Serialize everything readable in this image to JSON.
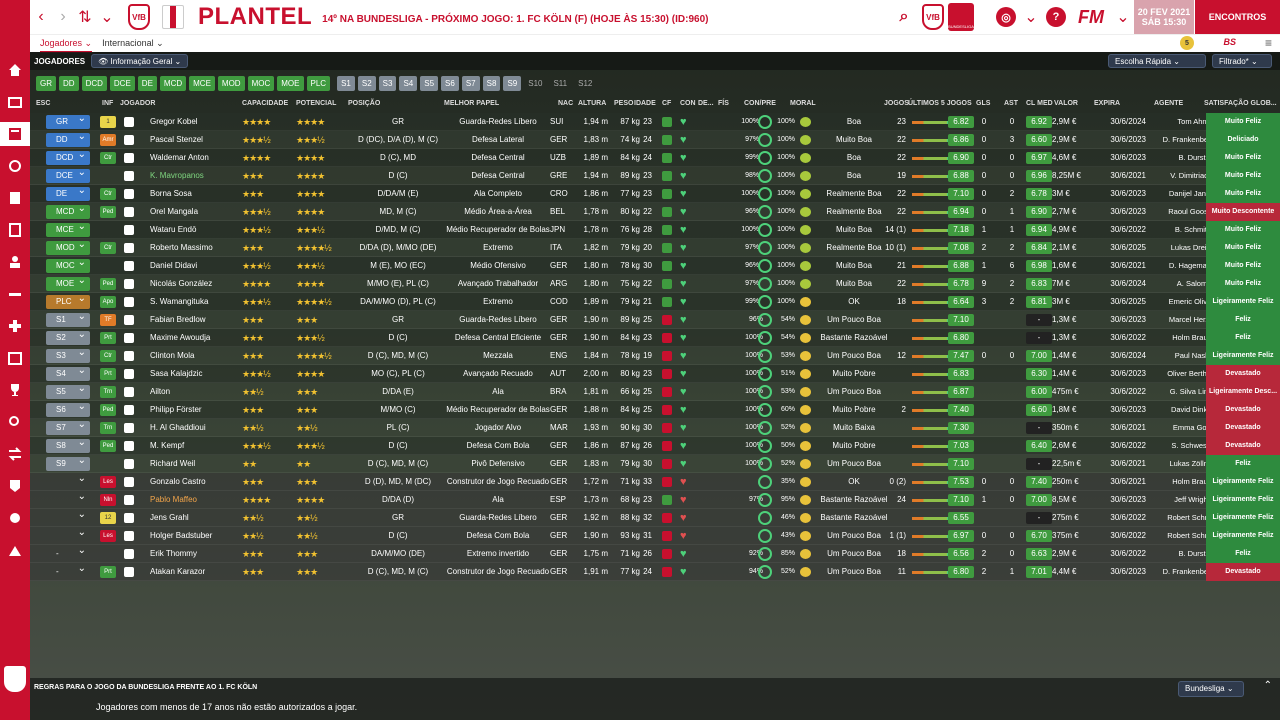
{
  "header": {
    "title": "PLANTEL",
    "subtitle": "14º NA BUNDESLIGA - PRÓXIMO JOGO: 1. FC KÖLN (F) (HOJE ÀS 15:30) (ID:960)",
    "date_line1": "20 FEV 2021",
    "date_line2": "SÁB 15:30",
    "encontros": "ENCONTROS",
    "fm_logo": "FM",
    "notif_count": "5",
    "league_label": "BUNDESLIGA",
    "bs_label": "BS"
  },
  "subtabs": [
    "Jogadores ⌄",
    "Internacional ⌄"
  ],
  "toolbar": {
    "label": "JOGADORES",
    "view": "Informação Geral",
    "quick": "Escolha Rápida",
    "filter": "Filtrado*"
  },
  "chips": {
    "main": [
      "GR",
      "DD",
      "DCD",
      "DCE",
      "DE",
      "MCD",
      "MCE",
      "MOD",
      "MOC",
      "MOE",
      "PLC"
    ],
    "subs": [
      "S1",
      "S2",
      "S3",
      "S4",
      "S5",
      "S6",
      "S7",
      "S8",
      "S9"
    ],
    "reserves": [
      "S10",
      "S11",
      "S12"
    ]
  },
  "columns": [
    "ESC",
    "INF",
    "JOGADOR",
    "CAPACIDADE",
    "POTENCIAL",
    "POSIÇÃO",
    "MELHOR PAPEL",
    "NAC",
    "ALTURA",
    "PESO",
    "IDADE",
    "CF",
    "CON",
    "DE...",
    "FÍS",
    "CON/PRE",
    "MORAL",
    "JOGOS",
    "ÚLTIMOS 5 JOGOS",
    "GLS",
    "AST",
    "CL MED",
    "VALOR",
    "EXPIRA",
    "AGENTE",
    "SATISFAÇÃO GLOB..."
  ],
  "players": [
    {
      "esc": "GR",
      "inf": "1",
      "name": "Gregor Kobel",
      "cap": "★★★★",
      "pot": "★★★★",
      "pos": "GR",
      "role": "Guarda-Redes Líbero",
      "nac": "SUI",
      "alt": "1,94 m",
      "peso": "87 kg",
      "idade": "23",
      "conpre": "100%",
      "conpre2": "100%",
      "moral": "Boa",
      "jogos": "23",
      "avg": "6.82",
      "gls": "0",
      "ast": "0",
      "clmed": "6.92",
      "valor": "2,9M €",
      "expira": "30/6/2024",
      "agente": "Tom Ahn",
      "sat": "Muito Feliz"
    },
    {
      "esc": "DD",
      "inf": "Amr",
      "name": "Pascal Stenzel",
      "cap": "★★★½",
      "pot": "★★★½",
      "pos": "D (DC), D/A (D), M (C)",
      "role": "Defesa Lateral",
      "nac": "GER",
      "alt": "1,83 m",
      "peso": "74 kg",
      "idade": "24",
      "conpre": "97%",
      "conpre2": "100%",
      "moral": "Muito Boa",
      "jogos": "22",
      "avg": "6.86",
      "gls": "0",
      "ast": "3",
      "clmed": "6.60",
      "valor": "2,9M €",
      "expira": "30/6/2023",
      "agente": "D. Frankenberger",
      "sat": "Deliciado"
    },
    {
      "esc": "DCD",
      "inf": "Ctr",
      "name": "Waldemar Anton",
      "cap": "★★★★",
      "pot": "★★★★",
      "pos": "D (C), MD",
      "role": "Defesa Central",
      "nac": "UZB",
      "alt": "1,89 m",
      "peso": "84 kg",
      "idade": "24",
      "conpre": "99%",
      "conpre2": "100%",
      "moral": "Boa",
      "jogos": "22",
      "avg": "6.90",
      "gls": "0",
      "ast": "0",
      "clmed": "6.97",
      "valor": "4,6M €",
      "expira": "30/6/2023",
      "agente": "B. Durst",
      "sat": "Muito Feliz"
    },
    {
      "esc": "DCE",
      "inf": "",
      "name": "K. Mavropanos",
      "cap": "★★★",
      "pot": "★★★★",
      "pos": "D (C)",
      "role": "Defesa Central",
      "nac": "GRE",
      "alt": "1,94 m",
      "peso": "89 kg",
      "idade": "23",
      "conpre": "98%",
      "conpre2": "100%",
      "moral": "Boa",
      "jogos": "19",
      "avg": "6.88",
      "gls": "0",
      "ast": "0",
      "clmed": "6.96",
      "valor": "8,25M €",
      "expira": "30/6/2021",
      "agente": "V. Dimitriadis",
      "sat": "Muito Feliz"
    },
    {
      "esc": "DE",
      "inf": "Ctr",
      "name": "Borna Sosa",
      "cap": "★★★",
      "pot": "★★★★",
      "pos": "D/DA/M (E)",
      "role": "Ala Completo",
      "nac": "CRO",
      "alt": "1,86 m",
      "peso": "77 kg",
      "idade": "23",
      "conpre": "100%",
      "conpre2": "100%",
      "moral": "Realmente Boa",
      "jogos": "22",
      "avg": "7.10",
      "gls": "0",
      "ast": "2",
      "clmed": "6.78",
      "valor": "3M €",
      "expira": "30/6/2023",
      "agente": "Danijel Jancic",
      "sat": "Muito Feliz"
    },
    {
      "esc": "MCD",
      "inf": "Ped",
      "name": "Orel Mangala",
      "cap": "★★★½",
      "pot": "★★★★",
      "pos": "MD, M (C)",
      "role": "Médio Área-a-Área",
      "nac": "BEL",
      "alt": "1,78 m",
      "peso": "80 kg",
      "idade": "22",
      "conpre": "96%",
      "conpre2": "100%",
      "moral": "Realmente Boa",
      "jogos": "22",
      "avg": "6.94",
      "gls": "0",
      "ast": "1",
      "clmed": "6.90",
      "valor": "2,7M €",
      "expira": "30/6/2023",
      "agente": "Raoul Goosse",
      "sat": "Muito Descontente"
    },
    {
      "esc": "MCE",
      "inf": "",
      "name": "Wataru Endō",
      "cap": "★★★½",
      "pot": "★★★½",
      "pos": "D/MD, M (C)",
      "role": "Médio Recuperador de Bolas",
      "nac": "JPN",
      "alt": "1,78 m",
      "peso": "76 kg",
      "idade": "28",
      "conpre": "100%",
      "conpre2": "100%",
      "moral": "Muito Boa",
      "jogos": "14 (1)",
      "avg": "7.18",
      "gls": "1",
      "ast": "1",
      "clmed": "6.94",
      "valor": "4,9M €",
      "expira": "30/6/2022",
      "agente": "B. Schmitt",
      "sat": "Muito Feliz"
    },
    {
      "esc": "MOD",
      "inf": "Ctr",
      "name": "Roberto Massimo",
      "cap": "★★★",
      "pot": "★★★★½",
      "pos": "D/DA (D), M/MO (DE)",
      "role": "Extremo",
      "nac": "ITA",
      "alt": "1,82 m",
      "peso": "79 kg",
      "idade": "20",
      "conpre": "97%",
      "conpre2": "100%",
      "moral": "Realmente Boa",
      "jogos": "10 (1)",
      "avg": "7.08",
      "gls": "2",
      "ast": "2",
      "clmed": "6.84",
      "valor": "2,1M €",
      "expira": "30/6/2025",
      "agente": "Lukas Dreier",
      "sat": "Muito Feliz"
    },
    {
      "esc": "MOC",
      "inf": "",
      "name": "Daniel Didavi",
      "cap": "★★★½",
      "pot": "★★★½",
      "pos": "M (E), MO (EC)",
      "role": "Médio Ofensivo",
      "nac": "GER",
      "alt": "1,80 m",
      "peso": "78 kg",
      "idade": "30",
      "conpre": "96%",
      "conpre2": "100%",
      "moral": "Muito Boa",
      "jogos": "21",
      "avg": "6.88",
      "gls": "1",
      "ast": "6",
      "clmed": "6.98",
      "valor": "1,6M €",
      "expira": "30/6/2021",
      "agente": "D. Hagemann",
      "sat": "Muito Feliz"
    },
    {
      "esc": "MOE",
      "inf": "Ped",
      "name": "Nicolás González",
      "cap": "★★★★",
      "pot": "★★★★",
      "pos": "M/MO (E), PL (C)",
      "role": "Avançado Trabalhador",
      "nac": "ARG",
      "alt": "1,80 m",
      "peso": "75 kg",
      "idade": "22",
      "conpre": "97%",
      "conpre2": "100%",
      "moral": "Muito Boa",
      "jogos": "22",
      "avg": "6.78",
      "gls": "9",
      "ast": "2",
      "clmed": "6.83",
      "valor": "7M €",
      "expira": "30/6/2024",
      "agente": "A. Salom",
      "sat": "Muito Feliz"
    },
    {
      "esc": "PLC",
      "inf": "Apo",
      "name": "S. Wamangituka",
      "cap": "★★★½",
      "pot": "★★★★½",
      "pos": "DA/M/MO (D), PL (C)",
      "role": "Extremo",
      "nac": "COD",
      "alt": "1,89 m",
      "peso": "79 kg",
      "idade": "21",
      "conpre": "99%",
      "conpre2": "100%",
      "moral": "OK",
      "jogos": "18",
      "avg": "6.64",
      "gls": "3",
      "ast": "2",
      "clmed": "6.81",
      "valor": "3M €",
      "expira": "30/6/2025",
      "agente": "Emeric Olivier",
      "sat": "Ligeiramente Feliz"
    },
    {
      "esc": "S1",
      "inf": "TF",
      "name": "Fabian Bredlow",
      "cap": "★★★",
      "pot": "★★★",
      "pos": "GR",
      "role": "Guarda-Redes Líbero",
      "nac": "GER",
      "alt": "1,90 m",
      "peso": "89 kg",
      "idade": "25",
      "conpre": "96%",
      "conpre2": "54%",
      "moral": "Um Pouco Boa",
      "jogos": "",
      "avg": "7.10",
      "gls": "",
      "ast": "",
      "clmed": "-",
      "valor": "1,3M €",
      "expira": "30/6/2023",
      "agente": "Marcel Herzig",
      "sat": "Feliz"
    },
    {
      "esc": "S2",
      "inf": "Prt",
      "name": "Maxime Awoudja",
      "cap": "★★★",
      "pot": "★★★½",
      "pos": "D (C)",
      "role": "Defesa Central Eficiente",
      "nac": "GER",
      "alt": "1,90 m",
      "peso": "84 kg",
      "idade": "23",
      "conpre": "100%",
      "conpre2": "54%",
      "moral": "Bastante Razoável",
      "jogos": "",
      "avg": "6.80",
      "gls": "",
      "ast": "",
      "clmed": "-",
      "valor": "1,3M €",
      "expira": "30/6/2022",
      "agente": "Holm Braun",
      "sat": "Feliz"
    },
    {
      "esc": "S3",
      "inf": "Ctr",
      "name": "Clinton Mola",
      "cap": "★★★",
      "pot": "★★★★½",
      "pos": "D (C), MD, M (C)",
      "role": "Mezzala",
      "nac": "ENG",
      "alt": "1,84 m",
      "peso": "78 kg",
      "idade": "19",
      "conpre": "100%",
      "conpre2": "53%",
      "moral": "Um Pouco Boa",
      "jogos": "12",
      "avg": "7.47",
      "gls": "0",
      "ast": "0",
      "clmed": "7.00",
      "valor": "1,4M €",
      "expira": "30/6/2024",
      "agente": "Paul Nash",
      "sat": "Ligeiramente Feliz"
    },
    {
      "esc": "S4",
      "inf": "Prt",
      "name": "Sasa Kalajdzic",
      "cap": "★★★½",
      "pot": "★★★★",
      "pos": "MO (C), PL (C)",
      "role": "Avançado Recuado",
      "nac": "AUT",
      "alt": "2,00 m",
      "peso": "80 kg",
      "idade": "23",
      "conpre": "100%",
      "conpre2": "51%",
      "moral": "Muito Pobre",
      "jogos": "",
      "avg": "6.83",
      "gls": "",
      "ast": "",
      "clmed": "6.30",
      "valor": "1,4M €",
      "expira": "30/6/2023",
      "agente": "Oliver Berthold",
      "sat": "Devastado"
    },
    {
      "esc": "S5",
      "inf": "Trn",
      "name": "Ailton",
      "cap": "★★½",
      "pot": "★★★",
      "pos": "D/DA (E)",
      "role": "Ala",
      "nac": "BRA",
      "alt": "1,81 m",
      "peso": "66 kg",
      "idade": "25",
      "conpre": "100%",
      "conpre2": "53%",
      "moral": "Um Pouco Boa",
      "jogos": "",
      "avg": "6.87",
      "gls": "",
      "ast": "",
      "clmed": "6.00",
      "valor": "475m €",
      "expira": "30/6/2022",
      "agente": "G. Silva Lima",
      "sat": "Ligeiramente Desc..."
    },
    {
      "esc": "S6",
      "inf": "Ped",
      "name": "Philipp Förster",
      "cap": "★★★",
      "pot": "★★★",
      "pos": "M/MO (C)",
      "role": "Médio Recuperador de Bolas",
      "nac": "GER",
      "alt": "1,88 m",
      "peso": "84 kg",
      "idade": "25",
      "conpre": "100%",
      "conpre2": "60%",
      "moral": "Muito Pobre",
      "jogos": "2",
      "avg": "7.40",
      "gls": "",
      "ast": "",
      "clmed": "6.60",
      "valor": "1,8M €",
      "expira": "30/6/2023",
      "agente": "David Dinkel",
      "sat": "Devastado"
    },
    {
      "esc": "S7",
      "inf": "Trn",
      "name": "H. Al Ghaddioui",
      "cap": "★★½",
      "pot": "★★½",
      "pos": "PL (C)",
      "role": "Jogador Alvo",
      "nac": "MAR",
      "alt": "1,93 m",
      "peso": "90 kg",
      "idade": "30",
      "conpre": "100%",
      "conpre2": "52%",
      "moral": "Muito Baixa",
      "jogos": "",
      "avg": "7.30",
      "gls": "",
      "ast": "",
      "clmed": "-",
      "valor": "350m €",
      "expira": "30/6/2021",
      "agente": "Emma Goß",
      "sat": "Devastado"
    },
    {
      "esc": "S8",
      "inf": "Ped",
      "name": "M. Kempf",
      "cap": "★★★½",
      "pot": "★★★½",
      "pos": "D (C)",
      "role": "Defesa Com Bola",
      "nac": "GER",
      "alt": "1,86 m",
      "peso": "87 kg",
      "idade": "26",
      "conpre": "100%",
      "conpre2": "50%",
      "moral": "Muito Pobre",
      "jogos": "",
      "avg": "7.03",
      "gls": "",
      "ast": "",
      "clmed": "6.40",
      "valor": "2,6M €",
      "expira": "30/6/2022",
      "agente": "S. Schwesig",
      "sat": "Devastado"
    },
    {
      "esc": "S9",
      "inf": "",
      "name": "Richard Weil",
      "cap": "★★",
      "pot": "★★",
      "pos": "D (C), MD, M (C)",
      "role": "Pivô Defensivo",
      "nac": "GER",
      "alt": "1,83 m",
      "peso": "79 kg",
      "idade": "30",
      "conpre": "100%",
      "conpre2": "52%",
      "moral": "Um Pouco Boa",
      "jogos": "",
      "avg": "7.10",
      "gls": "",
      "ast": "",
      "clmed": "-",
      "valor": "22,5m €",
      "expira": "30/6/2021",
      "agente": "Lukas Zöllner",
      "sat": "Feliz"
    },
    {
      "esc": "",
      "inf": "Les",
      "name": "Gonzalo Castro",
      "cap": "★★★",
      "pot": "★★★",
      "pos": "D (D), MD, M (DC)",
      "role": "Construtor de Jogo Recuado",
      "nac": "GER",
      "alt": "1,72 m",
      "peso": "71 kg",
      "idade": "33",
      "conpre": "",
      "conpre2": "35%",
      "moral": "OK",
      "jogos": "0 (2)",
      "avg": "7.53",
      "gls": "0",
      "ast": "0",
      "clmed": "7.40",
      "valor": "250m €",
      "expira": "30/6/2021",
      "agente": "Holm Braun",
      "sat": "Ligeiramente Feliz"
    },
    {
      "esc": "",
      "inf": "Nln",
      "name": "Pablo Maffeo",
      "cap": "★★★★",
      "pot": "★★★★",
      "pos": "D/DA (D)",
      "role": "Ala",
      "nac": "ESP",
      "alt": "1,73 m",
      "peso": "68 kg",
      "idade": "23",
      "conpre": "97%",
      "conpre2": "95%",
      "moral": "Bastante Razoável",
      "jogos": "24",
      "avg": "7.10",
      "gls": "1",
      "ast": "0",
      "clmed": "7.00",
      "valor": "8,5M €",
      "expira": "30/6/2023",
      "agente": "Jeff Wright",
      "sat": "Ligeiramente Feliz"
    },
    {
      "esc": "",
      "inf": "12",
      "name": "Jens Grahl",
      "cap": "★★½",
      "pot": "★★½",
      "pos": "GR",
      "role": "Guarda-Redes Líbero",
      "nac": "GER",
      "alt": "1,92 m",
      "peso": "88 kg",
      "idade": "32",
      "conpre": "",
      "conpre2": "46%",
      "moral": "Bastante Razoável",
      "jogos": "",
      "avg": "6.55",
      "gls": "",
      "ast": "",
      "clmed": "-",
      "valor": "275m €",
      "expira": "30/6/2022",
      "agente": "Robert Schmitt",
      "sat": "Ligeiramente Feliz"
    },
    {
      "esc": "",
      "inf": "Les",
      "name": "Holger Badstuber",
      "cap": "★★½",
      "pot": "★★½",
      "pos": "D (C)",
      "role": "Defesa Com Bola",
      "nac": "GER",
      "alt": "1,90 m",
      "peso": "93 kg",
      "idade": "31",
      "conpre": "",
      "conpre2": "43%",
      "moral": "Um Pouco Boa",
      "jogos": "1 (1)",
      "avg": "6.97",
      "gls": "0",
      "ast": "0",
      "clmed": "6.70",
      "valor": "375m €",
      "expira": "30/6/2022",
      "agente": "Robert Schmitt",
      "sat": "Ligeiramente Feliz"
    },
    {
      "esc": "-",
      "inf": "",
      "name": "Erik Thommy",
      "cap": "★★★",
      "pot": "★★★",
      "pos": "DA/M/MO (DE)",
      "role": "Extremo invertido",
      "nac": "GER",
      "alt": "1,75 m",
      "peso": "71 kg",
      "idade": "26",
      "conpre": "92%",
      "conpre2": "85%",
      "moral": "Um Pouco Boa",
      "jogos": "18",
      "avg": "6.56",
      "gls": "2",
      "ast": "0",
      "clmed": "6.63",
      "valor": "2,9M €",
      "expira": "30/6/2022",
      "agente": "B. Durst",
      "sat": "Feliz"
    },
    {
      "esc": "-",
      "inf": "Prt",
      "name": "Atakan Karazor",
      "cap": "★★★",
      "pot": "★★★",
      "pos": "D (C), MD, M (C)",
      "role": "Construtor de Jogo Recuado",
      "nac": "GER",
      "alt": "1,91 m",
      "peso": "77 kg",
      "idade": "24",
      "conpre": "94%",
      "conpre2": "52%",
      "moral": "Um Pouco Boa",
      "jogos": "11",
      "avg": "6.80",
      "gls": "2",
      "ast": "1",
      "clmed": "7.01",
      "valor": "4,4M €",
      "expira": "30/6/2023",
      "agente": "D. Frankenberger",
      "sat": "Devastado"
    }
  ],
  "footer": {
    "title": "REGRAS PARA O JOGO DA BUNDESLIGA FRENTE AO 1. FC KÖLN",
    "message": "Jogadores com menos de 17 anos não estão autorizados a jogar.",
    "competition": "Bundesliga"
  },
  "colors": {
    "accent": "#c8102e",
    "green": "#3f9b3f",
    "blue": "#3a78c8"
  }
}
